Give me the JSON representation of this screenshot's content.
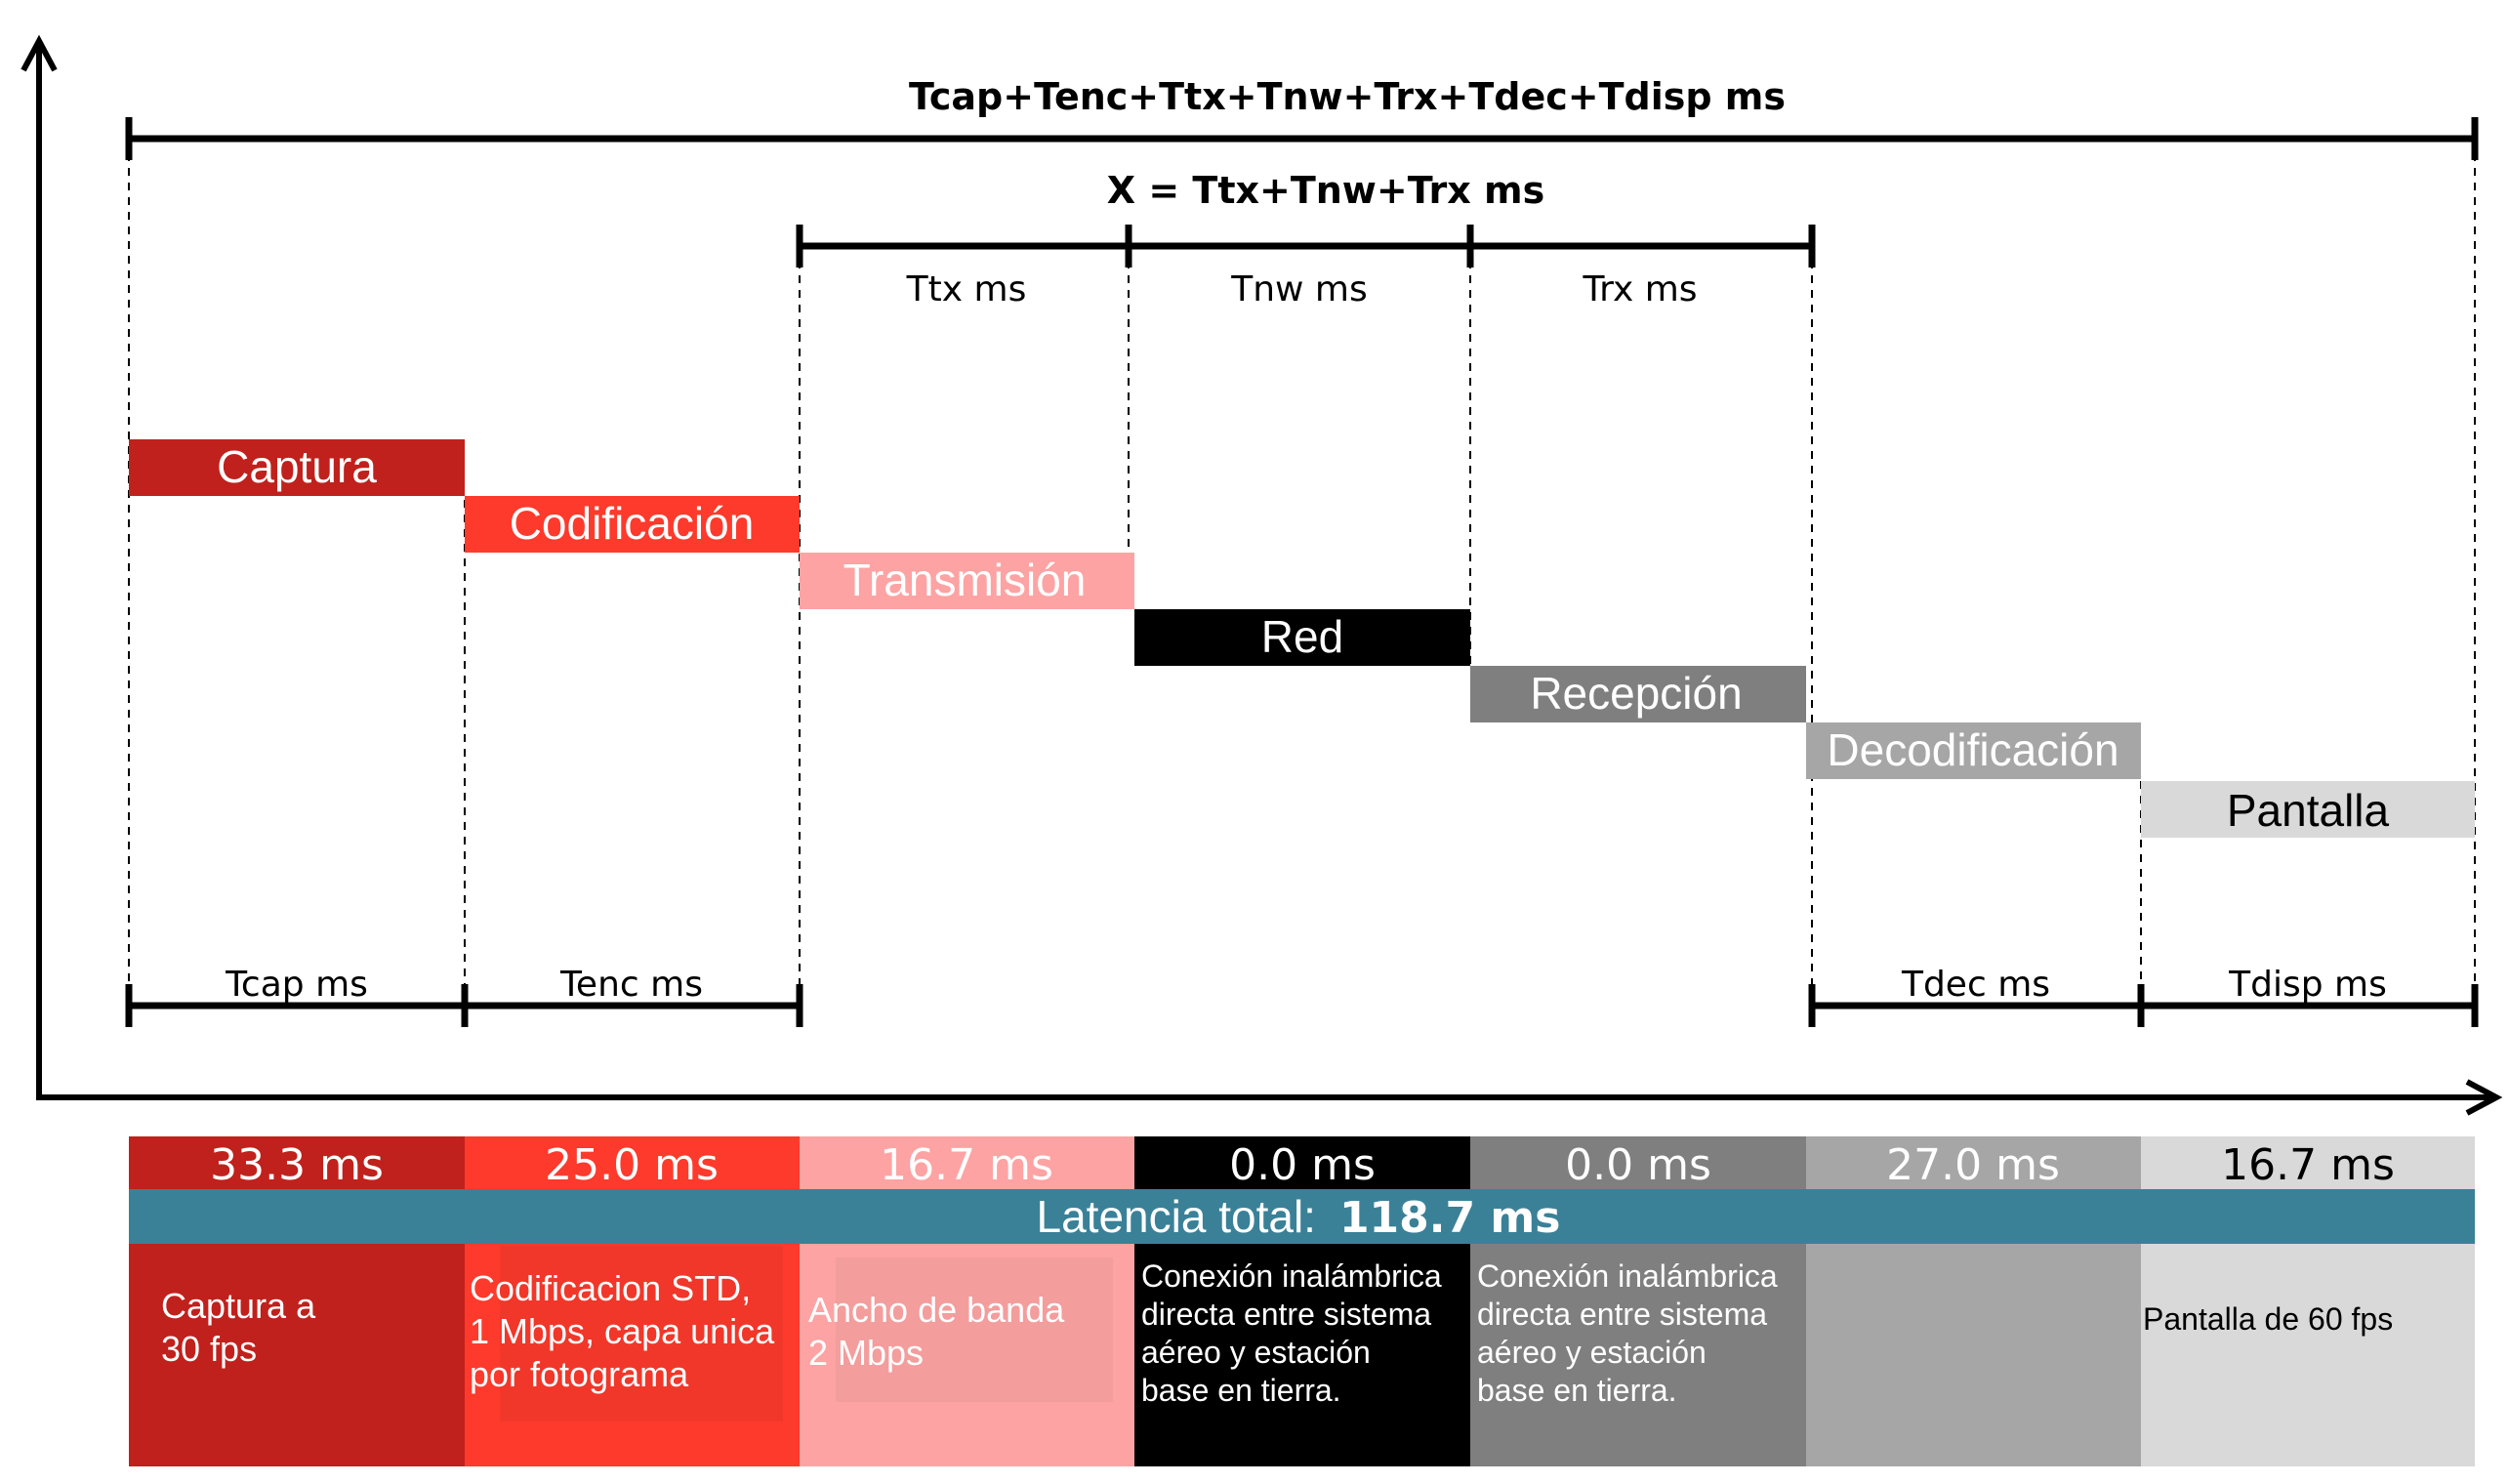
{
  "header": {
    "total_formula": "Tcap+Tenc+Ttx+Tnw+Trx+Tdec+Tdisp ms",
    "x_formula": "X = Ttx+Tnw+Trx ms"
  },
  "top_spans": [
    {
      "id": "ttx",
      "label": "Ttx ms"
    },
    {
      "id": "tnw",
      "label": "Tnw ms"
    },
    {
      "id": "trx",
      "label": "Trx ms"
    }
  ],
  "bottom_spans": [
    {
      "id": "tcap",
      "label": "Tcap ms"
    },
    {
      "id": "tenc",
      "label": "Tenc ms"
    },
    {
      "id": "tdec",
      "label": "Tdec ms"
    },
    {
      "id": "tdisp",
      "label": "Tdisp ms"
    }
  ],
  "stages": [
    {
      "id": "captura",
      "name": "Captura",
      "time": "33.3 ms",
      "desc": "Captura a\n30 fps",
      "color": "#c0211c",
      "text_color": "#ffffff",
      "desc_color": "#ffffff"
    },
    {
      "id": "codificacion",
      "name": "Codificación",
      "time": "25.0 ms",
      "desc": "Codificacion STD,\n1 Mbps, capa unica\npor fotograma",
      "color": "#fd3a2c",
      "text_color": "#ffffff",
      "desc_color": "#ffffff"
    },
    {
      "id": "transmision",
      "name": "Transmisión",
      "time": "16.7 ms",
      "desc": "Ancho de banda\n2 Mbps",
      "color": "#fda3a3",
      "text_color": "#ffffff",
      "desc_color": "#ffffff"
    },
    {
      "id": "red",
      "name": "Red",
      "time": "0.0 ms",
      "desc": "Conexión inalámbrica\ndirecta entre sistema\naéreo y estación\nbase en tierra.",
      "color": "#000000",
      "text_color": "#ffffff",
      "desc_color": "#ffffff"
    },
    {
      "id": "recepcion",
      "name": "Recepción",
      "time": "0.0 ms",
      "desc": "Conexión inalámbrica\ndirecta entre sistema\naéreo y estación\nbase en tierra.",
      "color": "#7f7f7f",
      "text_color": "#ffffff",
      "desc_color": "#ffffff"
    },
    {
      "id": "decodificacion",
      "name": "Decodificación",
      "time": "27.0 ms",
      "desc": "",
      "color": "#a6a6a6",
      "text_color": "#ffffff",
      "desc_color": "#ffffff"
    },
    {
      "id": "pantalla",
      "name": "Pantalla",
      "time": "16.7 ms",
      "desc": "Pantalla de 60 fps",
      "color": "#d9d9d9",
      "text_color": "#000000",
      "desc_color": "#000000"
    }
  ],
  "total": {
    "label": "Latencia total:",
    "value": "118.7 ms",
    "color": "#3a8198"
  }
}
